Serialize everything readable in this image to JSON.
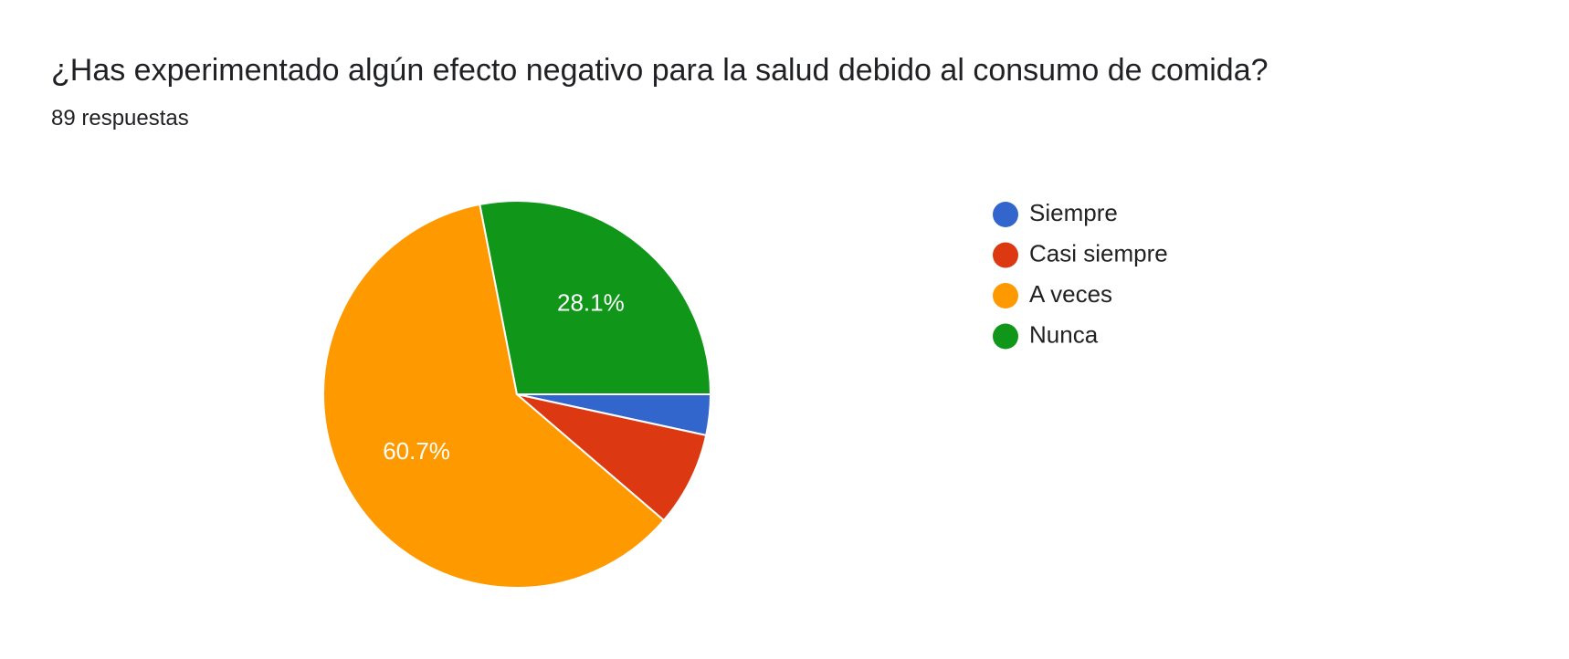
{
  "header": {
    "title": "¿Has experimentado algún efecto negativo para la salud debido al consumo de comida?",
    "response_count": "89 respuestas"
  },
  "chart_data": {
    "type": "pie",
    "title": "¿Has experimentado algún efecto negativo para la salud debido al consumo de comida?",
    "categories": [
      "Siempre",
      "Casi siempre",
      "A veces",
      "Nunca"
    ],
    "values": [
      3.4,
      7.9,
      60.7,
      28.1
    ],
    "data_labels": [
      "",
      "",
      "60.7%",
      "28.1%"
    ],
    "colors": [
      "#3366cc",
      "#dc3912",
      "#ff9900",
      "#109618"
    ],
    "legend_placement": "right"
  }
}
